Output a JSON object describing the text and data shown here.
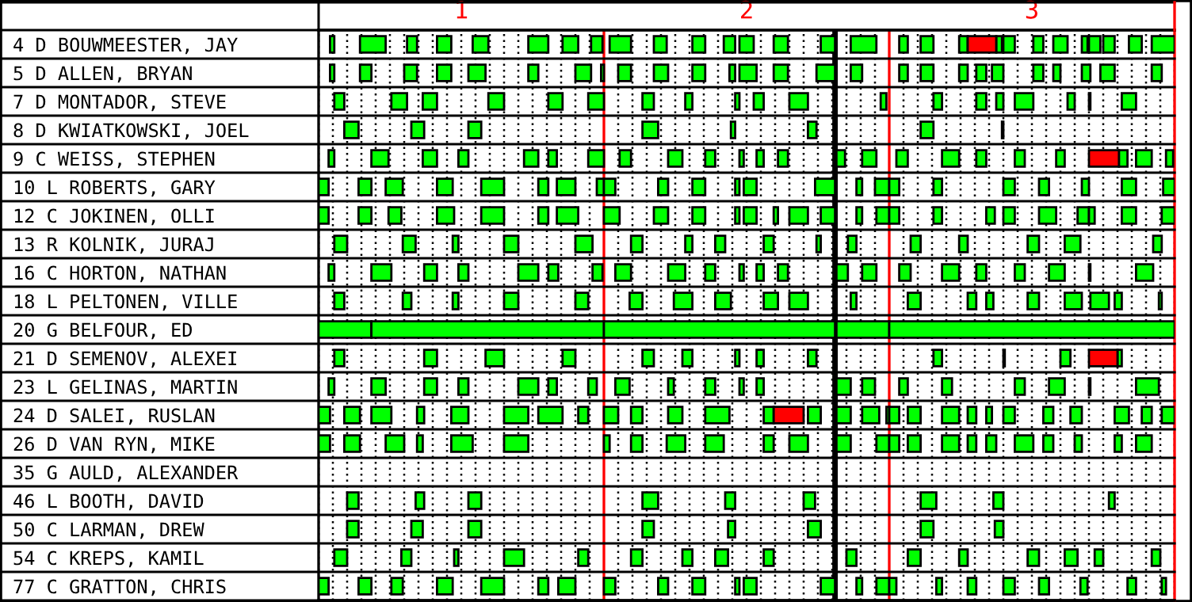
{
  "chart_data": {
    "type": "bar",
    "orientation": "horizontal",
    "grid": "x",
    "categories": [
      "4 D BOUWMEESTER, JAY",
      "5 D ALLEN, BRYAN",
      "7 D MONTADOR, STEVE",
      "8 D KWIATKOWSKI, JOEL",
      "9 C WEISS, STEPHEN",
      "10 L ROBERTS, GARY",
      "12 C JOKINEN, OLLI",
      "13 R KOLNIK, JURAJ",
      "16 C HORTON, NATHAN",
      "18 L PELTONEN, VILLE",
      "20 G BELFOUR, ED",
      "21 D SEMENOV, ALEXEI",
      "23 L GELINAS, MARTIN",
      "24 D SALEI, RUSLAN",
      "26 D VAN RYN, MIKE",
      "35 G AULD, ALEXANDER",
      "46 L BOOTH, DAVID",
      "50 C LARMAN, DREW",
      "54 C KREPS, KAMIL",
      "77 C GRATTON, CHRIS"
    ],
    "xlim": [
      0.5,
      3.5
    ],
    "xticks": [
      {
        "value": 0.5,
        "label": null
      },
      {
        "value": 0.55,
        "label": null
      },
      {
        "value": 0.6,
        "label": null
      },
      {
        "value": 0.65,
        "label": null
      },
      {
        "value": 0.7,
        "label": null
      },
      {
        "value": 0.75,
        "label": null
      },
      {
        "value": 0.8,
        "label": null
      },
      {
        "value": 0.85,
        "label": null
      },
      {
        "value": 0.9,
        "label": null
      },
      {
        "value": 0.95,
        "label": null
      },
      1,
      {
        "value": 1.05,
        "label": null
      },
      {
        "value": 1.1,
        "label": null
      },
      {
        "value": 1.15,
        "label": null
      },
      {
        "value": 1.2,
        "label": null
      },
      {
        "value": 1.25,
        "label": null
      },
      {
        "value": 1.3,
        "label": null
      },
      {
        "value": 1.35,
        "label": null
      },
      {
        "value": 1.4,
        "label": null
      },
      {
        "value": 1.45,
        "label": null
      },
      {
        "value": 1.55,
        "label": null
      },
      {
        "value": 1.6,
        "label": null
      },
      {
        "value": 1.65,
        "label": null
      },
      {
        "value": 1.7,
        "label": null
      },
      {
        "value": 1.75,
        "label": null
      },
      {
        "value": 1.8,
        "label": null
      },
      {
        "value": 1.85,
        "label": null
      },
      {
        "value": 1.9,
        "label": null
      },
      {
        "value": 1.95,
        "label": null
      },
      2,
      {
        "value": 2.05,
        "label": null
      },
      {
        "value": 2.1,
        "label": null
      },
      {
        "value": 2.15,
        "label": null
      },
      {
        "value": 2.2,
        "label": null
      },
      {
        "value": 2.25,
        "label": null
      },
      {
        "value": 2.3,
        "label": null
      },
      {
        "value": 2.35,
        "label": null
      },
      {
        "value": 2.4,
        "label": null
      },
      {
        "value": 2.45,
        "label": null
      },
      {
        "value": 2.55,
        "label": null
      },
      {
        "value": 2.6,
        "label": null
      },
      {
        "value": 2.65,
        "label": null
      },
      {
        "value": 2.7,
        "label": null
      },
      {
        "value": 2.75,
        "label": null
      },
      {
        "value": 2.8,
        "label": null
      },
      {
        "value": 2.85,
        "label": null
      },
      {
        "value": 2.9,
        "label": null
      },
      {
        "value": 2.95,
        "label": null
      },
      3,
      {
        "value": 3.05,
        "label": null
      },
      {
        "value": 3.1,
        "label": null
      },
      {
        "value": 3.15,
        "label": null
      },
      {
        "value": 3.2,
        "label": null
      },
      {
        "value": 3.25,
        "label": null
      },
      {
        "value": 3.3,
        "label": null
      },
      {
        "value": 3.35,
        "label": null
      },
      {
        "value": 3.4,
        "label": null
      },
      {
        "value": 3.45,
        "label": null
      },
      {
        "value": 3.5,
        "label": null
      }
    ],
    "ref_lines": [
      {
        "axis": "x",
        "value": 1.5,
        "color": "#ff0000"
      },
      {
        "axis": "x",
        "value": 2.5,
        "color": "#ff0000"
      },
      {
        "axis": "x",
        "value": 2.31,
        "color": "#000000"
      }
    ],
    "series": [
      {
        "color": "#00ff00",
        "base": [
          0.54,
          0.54,
          0.555,
          0.59,
          0.535,
          0.5,
          0.5,
          0.555,
          0.535,
          0.555,
          0.5,
          0.555,
          0.535,
          0.5,
          0.5,
          null,
          0.6,
          0.6,
          0.555,
          0.5
        ],
        "values": [
          0.015,
          0.015,
          0.035,
          0.05,
          0.02,
          0.035,
          0.035,
          0.045,
          0.02,
          0.035,
          0.185,
          0.035,
          0.02,
          0.04,
          0.04,
          null,
          0.04,
          0.04,
          0.045,
          0.035
        ]
      },
      {
        "color": "#00ff00",
        "base": [
          0.645,
          0.645,
          0.755,
          0.825,
          0.685,
          0.64,
          0.64,
          0.795,
          0.685,
          0.795,
          0.685,
          0.87,
          0.685,
          0.59,
          0.59,
          null,
          0.84,
          0.825,
          0.79,
          0.64
        ],
        "values": [
          0.09,
          0.04,
          0.055,
          0.045,
          0.06,
          0.045,
          0.045,
          0.045,
          0.07,
          0.03,
          0.815,
          0.045,
          0.05,
          0.055,
          0.055,
          null,
          0.03,
          0.04,
          0.035,
          0.045
        ]
      },
      {
        "color": "#00ff00",
        "base": [
          0.81,
          0.8,
          0.865,
          1.025,
          0.865,
          0.735,
          0.745,
          0.97,
          0.87,
          0.97,
          1.5,
          1.085,
          0.87,
          0.685,
          0.735,
          null,
          1.025,
          1.025,
          0.975,
          0.755
        ],
        "values": [
          0.035,
          0.045,
          0.05,
          0.045,
          0.05,
          0.06,
          0.045,
          0.02,
          0.045,
          0.02,
          0.81,
          0.065,
          0.045,
          0.07,
          0.065,
          null,
          0.045,
          0.045,
          0.015,
          0.04
        ]
      },
      {
        "color": "#00ff00",
        "base": [
          0.915,
          0.915,
          1.095,
          1.635,
          0.99,
          0.915,
          0.915,
          1.15,
          0.99,
          1.15,
          2.315,
          1.355,
          0.99,
          0.845,
          0.845,
          null,
          1.635,
          1.635,
          1.15,
          0.915
        ],
        "values": [
          0.05,
          0.05,
          0.055,
          0.055,
          0.035,
          0.055,
          0.06,
          0.05,
          0.035,
          0.05,
          0.185,
          0.045,
          0.035,
          0.025,
          0.02,
          null,
          0.055,
          0.04,
          0.07,
          0.055
        ]
      },
      {
        "color": "#00ff00",
        "base": [
          1.04,
          1.025,
          1.305,
          1.945,
          1.22,
          1.07,
          1.07,
          1.4,
          1.2,
          1.4,
          2.5,
          1.635,
          1.2,
          0.965,
          0.965,
          null,
          1.925,
          1.935,
          1.41,
          1.07
        ],
        "values": [
          0.055,
          0.06,
          0.05,
          0.015,
          0.05,
          0.08,
          0.08,
          0.06,
          0.07,
          0.045,
          1.0,
          0.04,
          0.07,
          0.06,
          0.075,
          null,
          0.035,
          0.025,
          0.035,
          0.08
        ]
      },
      {
        "color": "#00ff00",
        "base": [
          1.235,
          1.235,
          1.445,
          2.215,
          1.305,
          1.27,
          1.27,
          1.595,
          1.305,
          1.59,
          null,
          1.775,
          1.305,
          1.15,
          1.15,
          null,
          2.2,
          2.215,
          1.595,
          1.27
        ],
        "values": [
          0.07,
          0.035,
          0.055,
          0.03,
          0.03,
          0.035,
          0.035,
          0.04,
          0.035,
          0.045,
          null,
          0.035,
          0.03,
          0.085,
          0.085,
          null,
          0.04,
          0.045,
          0.04,
          0.035
        ]
      },
      {
        "color": "#00ff00",
        "base": [
          1.355,
          1.4,
          1.635,
          2.61,
          1.445,
          1.335,
          1.335,
          1.785,
          1.46,
          1.745,
          null,
          1.96,
          1.445,
          1.27,
          1.5,
          null,
          2.61,
          2.61,
          1.775,
          1.34
        ],
        "values": [
          0.055,
          0.055,
          0.04,
          0.045,
          0.055,
          0.065,
          0.075,
          0.025,
          0.035,
          0.065,
          null,
          0.015,
          0.03,
          0.085,
          0.02,
          null,
          0.055,
          0.045,
          0.035,
          0.06
        ]
      },
      {
        "color": "#00ff00",
        "base": [
          1.455,
          1.49,
          1.785,
          2.895,
          1.555,
          1.475,
          1.5,
          1.89,
          1.54,
          1.89,
          null,
          2.035,
          1.54,
          1.41,
          1.595,
          null,
          2.865,
          2.87,
          1.89,
          1.5
        ],
        "values": [
          0.04,
          0.01,
          0.025,
          0.005,
          0.04,
          0.025,
          0.055,
          0.035,
          0.055,
          0.055,
          null,
          0.025,
          0.05,
          0.035,
          0.04,
          null,
          0.035,
          0.03,
          0.045,
          0.04
        ]
      },
      {
        "color": "#00ff00",
        "base": [
          1.52,
          1.55,
          1.96,
          null,
          1.725,
          1.5,
          1.675,
          2.06,
          1.725,
          2.06,
          null,
          2.215,
          1.725,
          1.5,
          1.72,
          null,
          3.27,
          null,
          2.06,
          1.69
        ],
        "values": [
          0.075,
          0.045,
          0.015,
          null,
          0.05,
          0.04,
          0.05,
          0.035,
          0.06,
          0.05,
          null,
          0.03,
          0.02,
          0.05,
          0.065,
          null,
          0.02,
          null,
          0.035,
          0.035
        ]
      },
      {
        "color": "#00ff00",
        "base": [
          1.675,
          1.675,
          2.025,
          null,
          1.855,
          1.69,
          1.81,
          2.245,
          1.855,
          2.15,
          null,
          2.655,
          1.855,
          1.595,
          1.855,
          null,
          null,
          null,
          2.35,
          1.81
        ],
        "values": [
          0.045,
          0.05,
          0.035,
          null,
          0.035,
          0.035,
          0.045,
          0.015,
          0.035,
          0.065,
          null,
          0.03,
          0.035,
          0.04,
          0.065,
          null,
          null,
          null,
          0.035,
          0.045
        ]
      },
      {
        "color": "#00ff00",
        "base": [
          1.81,
          1.81,
          2.15,
          null,
          1.975,
          1.81,
          1.96,
          2.355,
          1.975,
          2.365,
          null,
          2.9,
          1.975,
          1.725,
          2.06,
          null,
          null,
          null,
          2.565,
          1.96
        ],
        "values": [
          0.045,
          0.045,
          0.065,
          null,
          0.015,
          0.045,
          0.015,
          0.03,
          0.015,
          0.02,
          null,
          0.005,
          0.015,
          0.05,
          0.035,
          null,
          null,
          null,
          0.045,
          0.015
        ]
      },
      {
        "color": "#00ff00",
        "base": [
          1.92,
          1.94,
          2.47,
          null,
          2.035,
          1.96,
          1.99,
          2.575,
          2.035,
          2.565,
          null,
          3.1,
          2.035,
          1.855,
          2.15,
          null,
          null,
          null,
          2.745,
          1.99
        ],
        "values": [
          0.04,
          0.02,
          0.02,
          null,
          0.025,
          0.015,
          0.045,
          0.035,
          0.025,
          0.045,
          null,
          0.035,
          0.025,
          0.085,
          0.065,
          null,
          null,
          null,
          0.03,
          0.045
        ]
      },
      {
        "color": "#00ff00",
        "base": [
          1.975,
          1.975,
          2.655,
          null,
          2.11,
          1.99,
          2.095,
          2.745,
          2.11,
          2.775,
          null,
          3.3,
          2.315,
          2.06,
          2.315,
          null,
          null,
          null,
          2.985,
          2.26
        ],
        "values": [
          0.05,
          0.06,
          0.03,
          null,
          0.035,
          0.045,
          0.015,
          0.03,
          0.035,
          0.03,
          null,
          0.015,
          0.05,
          0.035,
          0.05,
          null,
          null,
          null,
          0.04,
          0.05
        ]
      },
      {
        "color": "#00ff00",
        "base": [
          2.095,
          2.095,
          2.805,
          null,
          2.315,
          2.24,
          2.15,
          2.985,
          2.315,
          2.84,
          null,
          null,
          2.405,
          2.215,
          2.455,
          null,
          null,
          null,
          3.115,
          2.385
        ],
        "values": [
          0.05,
          0.05,
          0.035,
          null,
          0.03,
          0.07,
          0.065,
          0.04,
          0.04,
          0.025,
          null,
          null,
          0.045,
          0.045,
          0.045,
          null,
          null,
          null,
          0.045,
          0.02
        ]
      },
      {
        "color": "#00ff00",
        "base": [
          2.26,
          2.245,
          2.875,
          null,
          2.405,
          2.385,
          2.26,
          3.115,
          2.405,
          2.985,
          null,
          null,
          2.535,
          2.315,
          2.5,
          null,
          null,
          null,
          3.22,
          2.455
        ],
        "values": [
          0.05,
          0.065,
          0.025,
          null,
          0.05,
          0.02,
          0.05,
          0.055,
          0.05,
          0.04,
          null,
          null,
          0.03,
          0.05,
          0.035,
          null,
          null,
          null,
          0.03,
          0.045
        ]
      },
      {
        "color": "#00ff00",
        "base": [
          2.365,
          2.365,
          2.94,
          null,
          2.525,
          2.45,
          2.385,
          3.425,
          2.535,
          3.115,
          null,
          null,
          2.685,
          2.405,
          2.565,
          null,
          null,
          null,
          3.42,
          2.5
        ],
        "values": [
          0.09,
          0.04,
          0.065,
          null,
          0.04,
          0.05,
          0.02,
          0.03,
          0.04,
          0.06,
          null,
          null,
          0.035,
          0.06,
          0.045,
          null,
          null,
          null,
          0.03,
          0.025
        ]
      },
      {
        "color": "#00ff00",
        "base": [
          2.535,
          2.535,
          3.125,
          null,
          2.685,
          2.5,
          2.455,
          null,
          2.685,
          3.205,
          null,
          null,
          2.94,
          2.49,
          2.685,
          null,
          null,
          null,
          null,
          2.665
        ],
        "values": [
          0.03,
          0.03,
          0.025,
          null,
          0.06,
          0.035,
          0.045,
          null,
          0.06,
          0.065,
          null,
          null,
          0.035,
          0.01,
          0.06,
          null,
          null,
          null,
          null,
          0.02
        ]
      },
      {
        "color": "#00ff00",
        "base": [
          2.61,
          2.61,
          3.2,
          null,
          2.805,
          2.655,
          2.5,
          null,
          2.805,
          3.29,
          null,
          null,
          3.06,
          2.5,
          2.775,
          null,
          null,
          null,
          null,
          2.775
        ],
        "values": [
          0.045,
          0.045,
          0.005,
          null,
          0.035,
          0.03,
          0.035,
          null,
          0.035,
          0.025,
          null,
          null,
          0.055,
          0.035,
          0.03,
          null,
          null,
          null,
          null,
          0.03
        ]
      },
      {
        "color": "#00ff00",
        "base": [
          2.745,
          2.745,
          3.315,
          null,
          2.94,
          2.9,
          2.655,
          null,
          2.94,
          3.445,
          null,
          null,
          3.2,
          2.565,
          2.84,
          null,
          null,
          null,
          null,
          2.9
        ],
        "values": [
          0.03,
          0.03,
          0.05,
          null,
          0.035,
          0.04,
          0.03,
          null,
          0.035,
          0.01,
          null,
          null,
          0.005,
          0.045,
          0.035,
          null,
          null,
          null,
          null,
          0.04
        ]
      },
      {
        "color": "#00ff00",
        "base": [
          2.875,
          2.805,
          null,
          null,
          3.085,
          3.025,
          2.84,
          null,
          3.06,
          null,
          null,
          null,
          3.365,
          2.685,
          2.94,
          null,
          null,
          null,
          null,
          3.025
        ],
        "values": [
          0.02,
          0.035,
          null,
          null,
          0.03,
          0.035,
          0.03,
          null,
          0.055,
          null,
          null,
          null,
          0.08,
          0.06,
          0.065,
          null,
          null,
          null,
          null,
          0.035
        ]
      },
      {
        "color": "#00ff00",
        "base": [
          2.9,
          2.86,
          null,
          null,
          3.305,
          3.175,
          2.9,
          null,
          3.2,
          null,
          null,
          null,
          null,
          2.775,
          3.04,
          null,
          null,
          null,
          null,
          3.17
        ],
        "values": [
          0.04,
          0.04,
          null,
          null,
          0.03,
          0.025,
          0.04,
          null,
          0.005,
          null,
          null,
          null,
          null,
          0.03,
          0.035,
          null,
          null,
          null,
          null,
          0.025
        ]
      },
      {
        "color": "#00ff00",
        "base": [
          3.005,
          3.005,
          null,
          null,
          3.365,
          3.315,
          3.025,
          null,
          3.365,
          null,
          null,
          null,
          null,
          2.84,
          3.15,
          null,
          null,
          null,
          null,
          3.335
        ],
        "values": [
          0.035,
          0.035,
          null,
          null,
          0.055,
          0.05,
          0.06,
          null,
          0.06,
          null,
          null,
          null,
          null,
          0.02,
          0.025,
          null,
          null,
          null,
          null,
          0.03
        ]
      },
      {
        "color": "#00ff00",
        "base": [
          3.075,
          3.075,
          null,
          null,
          3.47,
          3.46,
          3.16,
          null,
          null,
          null,
          null,
          null,
          null,
          2.9,
          3.29,
          null,
          null,
          null,
          null,
          3.455
        ],
        "values": [
          0.05,
          0.025,
          null,
          null,
          0.025,
          0.04,
          0.04,
          null,
          null,
          null,
          null,
          null,
          null,
          0.04,
          0.025,
          null,
          null,
          null,
          null,
          0.015
        ]
      },
      {
        "color": "#00ff00",
        "base": [
          3.175,
          3.175,
          null,
          null,
          null,
          null,
          3.2,
          null,
          null,
          null,
          null,
          null,
          null,
          3.04,
          3.365,
          null,
          null,
          null,
          null,
          null
        ],
        "values": [
          0.02,
          0.03,
          null,
          null,
          null,
          null,
          0.02,
          null,
          null,
          null,
          null,
          null,
          null,
          0.035,
          0.055,
          null,
          null,
          null,
          null,
          null
        ]
      },
      {
        "color": "#00ff00",
        "base": [
          3.2,
          3.24,
          null,
          null,
          null,
          null,
          3.315,
          null,
          null,
          null,
          null,
          null,
          null,
          3.135,
          null,
          null,
          null,
          null,
          null,
          null
        ],
        "values": [
          0.04,
          0.05,
          null,
          null,
          null,
          null,
          0.05,
          null,
          null,
          null,
          null,
          null,
          null,
          0.04,
          null,
          null,
          null,
          null,
          null,
          null
        ]
      },
      {
        "color": "#00ff00",
        "base": [
          3.25,
          3.42,
          null,
          null,
          null,
          null,
          3.455,
          null,
          null,
          null,
          null,
          null,
          null,
          3.29,
          null,
          null,
          null,
          null,
          null,
          null
        ],
        "values": [
          0.04,
          0.035,
          null,
          null,
          null,
          null,
          0.045,
          null,
          null,
          null,
          null,
          null,
          null,
          0.05,
          null,
          null,
          null,
          null,
          null,
          null
        ]
      },
      {
        "color": "#00ff00",
        "base": [
          3.34,
          null,
          null,
          null,
          null,
          null,
          null,
          null,
          null,
          null,
          null,
          null,
          null,
          3.385,
          null,
          null,
          null,
          null,
          null,
          null
        ],
        "values": [
          0.045,
          null,
          null,
          null,
          null,
          null,
          null,
          null,
          null,
          null,
          null,
          null,
          null,
          0.035,
          null,
          null,
          null,
          null,
          null,
          null
        ]
      },
      {
        "color": "#00ff00",
        "base": [
          3.42,
          null,
          null,
          null,
          null,
          null,
          null,
          null,
          null,
          null,
          null,
          null,
          null,
          3.455,
          null,
          null,
          null,
          null,
          null,
          null
        ],
        "values": [
          0.08,
          null,
          null,
          null,
          null,
          null,
          null,
          null,
          null,
          null,
          null,
          null,
          null,
          0.045,
          null,
          null,
          null,
          null,
          null,
          null
        ]
      },
      {
        "color": "#ff0000",
        "base": [
          2.775,
          null,
          null,
          null,
          3.2,
          null,
          null,
          null,
          null,
          null,
          null,
          3.2,
          null,
          2.095,
          null,
          null,
          null,
          null,
          null,
          null
        ],
        "values": [
          0.1,
          null,
          null,
          null,
          0.105,
          null,
          null,
          null,
          null,
          null,
          null,
          0.1,
          null,
          0.105,
          null,
          null,
          null,
          null,
          null,
          null
        ]
      }
    ]
  }
}
